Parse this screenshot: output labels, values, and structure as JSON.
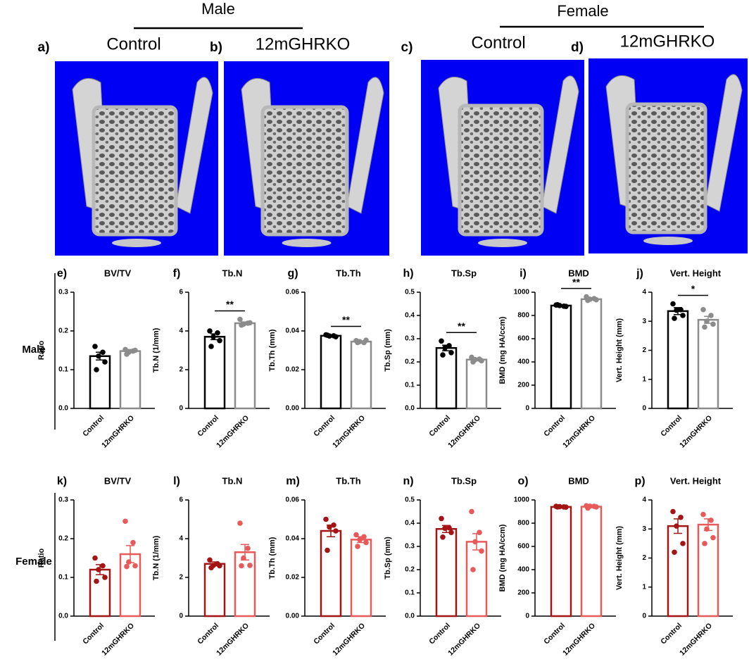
{
  "figure": {
    "group_headers": [
      "Male",
      "Female"
    ],
    "images": [
      {
        "panel": "a)",
        "title": "Control"
      },
      {
        "panel": "b)",
        "title": "12mGHRKO"
      },
      {
        "panel": "c)",
        "title": "Control"
      },
      {
        "panel": "d)",
        "title": "12mGHRKO"
      }
    ],
    "row_labels": [
      "Male",
      "Female"
    ]
  },
  "chart_data": [
    {
      "type": "bar",
      "panel": "e)",
      "title": "BV/TV",
      "ylabel": "Ratio",
      "categories": [
        "Control",
        "12mGHRKO"
      ],
      "values": [
        0.135,
        0.148
      ],
      "errors": [
        0.01,
        0.004
      ],
      "points": [
        [
          0.16,
          0.145,
          0.135,
          0.12,
          0.1
        ],
        [
          0.152,
          0.148,
          0.145,
          0.15,
          0.14
        ]
      ],
      "colors": [
        "#000000",
        "#8c8c8c"
      ],
      "ylim": [
        0,
        0.3
      ],
      "yticks": [
        {
          "value": 0,
          "label": "0.0"
        },
        0.1,
        0.2,
        0.3
      ]
    },
    {
      "type": "bar",
      "panel": "f)",
      "title": "Tb.N",
      "ylabel": "Tb.N (1/mm)",
      "categories": [
        "Control",
        "12mGHRKO"
      ],
      "values": [
        3.7,
        4.4
      ],
      "errors": [
        0.15,
        0.07
      ],
      "points": [
        [
          4.0,
          3.9,
          3.7,
          3.5,
          3.2
        ],
        [
          4.6,
          4.4,
          4.35,
          4.42,
          4.3
        ]
      ],
      "colors": [
        "#000000",
        "#8c8c8c"
      ],
      "ylim": [
        0,
        6
      ],
      "yticks": [
        0,
        2,
        4,
        6
      ],
      "annotation": "**"
    },
    {
      "type": "bar",
      "panel": "g)",
      "title": "Tb.Th",
      "ylabel": "Tb.Th (mm)",
      "categories": [
        "Control",
        "12mGHRKO"
      ],
      "values": [
        0.0375,
        0.0345
      ],
      "errors": [
        0.0003,
        0.0003
      ],
      "points": [
        [
          0.038,
          0.0375,
          0.0374,
          0.037,
          0.0378
        ],
        [
          0.035,
          0.034,
          0.0345,
          0.0352,
          0.034
        ]
      ],
      "colors": [
        "#000000",
        "#8c8c8c"
      ],
      "ylim": [
        0,
        0.06
      ],
      "yticks": [
        {
          "value": 0,
          "label": "0.00"
        },
        0.02,
        0.04,
        0.06
      ],
      "annotation": "**"
    },
    {
      "type": "bar",
      "panel": "h)",
      "title": "Tb.Sp",
      "ylabel": "Tb.Sp (mm)",
      "categories": [
        "Control",
        "12mGHRKO"
      ],
      "values": [
        0.26,
        0.21
      ],
      "errors": [
        0.012,
        0.005
      ],
      "points": [
        [
          0.29,
          0.27,
          0.26,
          0.24,
          0.23
        ],
        [
          0.22,
          0.212,
          0.21,
          0.205,
          0.2
        ]
      ],
      "colors": [
        "#000000",
        "#8c8c8c"
      ],
      "ylim": [
        0,
        0.5
      ],
      "yticks": [
        {
          "value": 0,
          "label": "0.0"
        },
        0.1,
        0.2,
        0.3,
        0.4,
        0.5
      ],
      "annotation": "**"
    },
    {
      "type": "bar",
      "panel": "i)",
      "title": "BMD",
      "ylabel": "BMD (mg HA/ccm)",
      "categories": [
        "Control",
        "12mGHRKO"
      ],
      "values": [
        885,
        940
      ],
      "errors": [
        6,
        6
      ],
      "points": [
        [
          890,
          880,
          885,
          878,
          892
        ],
        [
          960,
          945,
          940,
          935,
          930
        ]
      ],
      "colors": [
        "#000000",
        "#8c8c8c"
      ],
      "ylim": [
        0,
        1000
      ],
      "yticks": [
        0,
        200,
        400,
        600,
        800,
        1000
      ],
      "annotation": "**"
    },
    {
      "type": "bar",
      "panel": "j)",
      "title": "Vert. Height",
      "ylabel": "Vert. Height (mm)",
      "categories": [
        "Control",
        "12mGHRKO"
      ],
      "values": [
        3.35,
        3.05
      ],
      "errors": [
        0.12,
        0.12
      ],
      "points": [
        [
          3.6,
          3.4,
          3.38,
          3.2,
          3.1
        ],
        [
          3.4,
          3.2,
          3.0,
          2.9,
          2.8
        ]
      ],
      "colors": [
        "#000000",
        "#8c8c8c"
      ],
      "ylim": [
        0,
        4
      ],
      "yticks": [
        0,
        1,
        2,
        3,
        4
      ],
      "annotation": "*"
    },
    {
      "type": "bar",
      "panel": "k)",
      "title": "BV/TV",
      "ylabel": "Ratio",
      "categories": [
        "Control",
        "12mGHRKO"
      ],
      "values": [
        0.12,
        0.16
      ],
      "errors": [
        0.013,
        0.022
      ],
      "points": [
        [
          0.15,
          0.13,
          0.12,
          0.1,
          0.09
        ],
        [
          0.245,
          0.19,
          0.14,
          0.13,
          0.128
        ]
      ],
      "colors": [
        "#a31515",
        "#e8595a"
      ],
      "ylim": [
        0,
        0.3
      ],
      "yticks": [
        {
          "value": 0,
          "label": "0.0"
        },
        0.1,
        0.2,
        0.3
      ]
    },
    {
      "type": "bar",
      "panel": "l)",
      "title": "Tb.N",
      "ylabel": "Tb.N (1/mm)",
      "categories": [
        "Control",
        "12mGHRKO"
      ],
      "values": [
        2.7,
        3.3
      ],
      "errors": [
        0.1,
        0.4
      ],
      "points": [
        [
          2.9,
          2.7,
          2.62,
          2.6,
          2.5
        ],
        [
          4.8,
          3.5,
          3.0,
          2.62,
          2.6
        ]
      ],
      "colors": [
        "#a31515",
        "#e8595a"
      ],
      "ylim": [
        0,
        6
      ],
      "yticks": [
        0,
        2,
        4,
        6
      ]
    },
    {
      "type": "bar",
      "panel": "m)",
      "title": "Tb.Th",
      "ylabel": "Tb.Th (mm)",
      "categories": [
        "Control",
        "12mGHRKO"
      ],
      "values": [
        0.044,
        0.0395
      ],
      "errors": [
        0.003,
        0.0015
      ],
      "points": [
        [
          0.05,
          0.047,
          0.046,
          0.044,
          0.034
        ],
        [
          0.042,
          0.041,
          0.0395,
          0.038,
          0.036
        ]
      ],
      "colors": [
        "#a31515",
        "#e8595a"
      ],
      "ylim": [
        0,
        0.06
      ],
      "yticks": [
        {
          "value": 0,
          "label": "0.00"
        },
        0.02,
        0.04,
        0.06
      ]
    },
    {
      "type": "bar",
      "panel": "n)",
      "title": "Tb.Sp",
      "ylabel": "Tb.Sp (mm)",
      "categories": [
        "Control",
        "12mGHRKO"
      ],
      "values": [
        0.375,
        0.32
      ],
      "errors": [
        0.015,
        0.035
      ],
      "points": [
        [
          0.42,
          0.38,
          0.378,
          0.36,
          0.34
        ],
        [
          0.45,
          0.36,
          0.32,
          0.28,
          0.2
        ]
      ],
      "colors": [
        "#a31515",
        "#e8595a"
      ],
      "ylim": [
        0,
        0.5
      ],
      "yticks": [
        {
          "value": 0,
          "label": "0.0"
        },
        0.1,
        0.2,
        0.3,
        0.4,
        0.5
      ]
    },
    {
      "type": "bar",
      "panel": "o)",
      "title": "BMD",
      "ylabel": "BMD (mg HA/ccm)",
      "categories": [
        "Control",
        "12mGHRKO"
      ],
      "values": [
        940,
        942
      ],
      "errors": [
        2,
        4
      ],
      "points": [
        [
          945,
          940,
          942,
          938,
          940
        ],
        [
          950,
          945,
          946,
          940,
          930
        ]
      ],
      "colors": [
        "#a31515",
        "#e8595a"
      ],
      "ylim": [
        0,
        1000
      ],
      "yticks": [
        0,
        200,
        400,
        600,
        800,
        1000
      ]
    },
    {
      "type": "bar",
      "panel": "p)",
      "title": "Vert. Height",
      "ylabel": "Vert. Height (mm)",
      "categories": [
        "Control",
        "12mGHRKO"
      ],
      "values": [
        3.1,
        3.15
      ],
      "errors": [
        0.25,
        0.2
      ],
      "points": [
        [
          3.6,
          3.4,
          3.1,
          2.5,
          2.2
        ],
        [
          3.5,
          3.3,
          3.0,
          2.7,
          2.5
        ]
      ],
      "colors": [
        "#a31515",
        "#e8595a"
      ],
      "ylim": [
        0,
        4
      ],
      "yticks": [
        0,
        1,
        2,
        3,
        4
      ]
    }
  ]
}
